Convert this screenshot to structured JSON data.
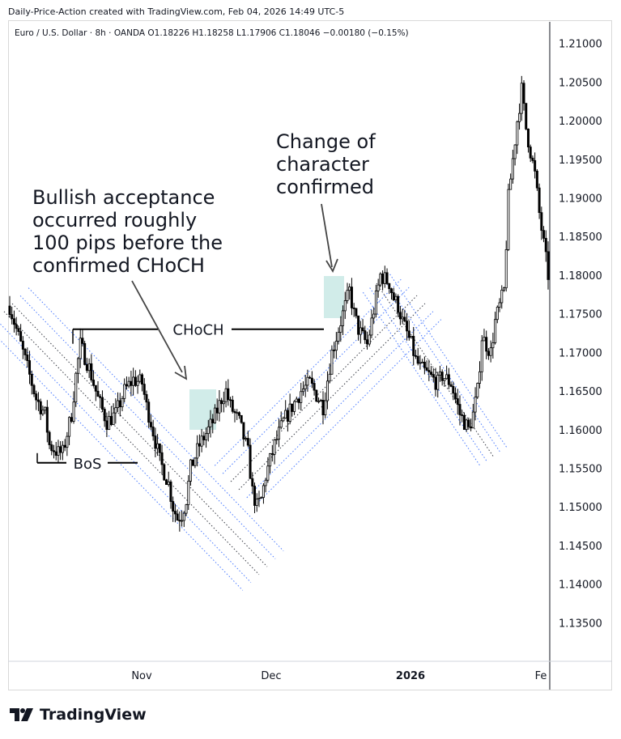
{
  "attribution": "Daily-Price-Action created with TradingView.com, Feb 04, 2026 14:49 UTC-5",
  "legend": "Euro / U.S. Dollar · 8h · OANDA  O1.18226  H1.18258  L1.17906  C1.18046  −0.00180 (−0.15%)",
  "brand": "TradingView",
  "colors": {
    "candle": "#000000",
    "zone": "#b2dfdb",
    "channel": "#2962ff",
    "midline": "#131722"
  },
  "icons": [
    "tradingview-logo-icon"
  ],
  "chart_data": {
    "type": "candlestick",
    "symbol": "Euro / U.S. Dollar",
    "interval": "8h",
    "exchange": "OANDA",
    "ohlc_last": {
      "open": 1.18226,
      "high": 1.18258,
      "low": 1.17906,
      "close": 1.18046,
      "change": -0.0018,
      "change_pct": -0.15
    },
    "y_ticks": [
      "1.21000",
      "1.20500",
      "1.20000",
      "1.19500",
      "1.19000",
      "1.18500",
      "1.18000",
      "1.17500",
      "1.17000",
      "1.16500",
      "1.16000",
      "1.15500",
      "1.15000",
      "1.14500",
      "1.14000",
      "1.13500"
    ],
    "ylim": [
      1.13,
      1.2128
    ],
    "x_ticks": [
      "Nov",
      "Dec",
      "2026",
      "Fe"
    ],
    "annotations": {
      "bos_label": "BoS",
      "choch_label": "CHoCH",
      "note_left": [
        "Bullish acceptance",
        "occurred roughly",
        "100 pips before the",
        "confirmed CHoCH"
      ],
      "note_right": [
        "Change of",
        "character",
        "confirmed"
      ],
      "bos_level": 1.1557,
      "choch_level": 1.173
    },
    "close_path": [
      [
        0,
        1.176
      ],
      [
        4,
        1.172
      ],
      [
        8,
        1.168
      ],
      [
        12,
        1.164
      ],
      [
        16,
        1.162
      ],
      [
        18,
        1.158
      ],
      [
        22,
        1.157
      ],
      [
        24,
        1.157
      ],
      [
        28,
        1.162
      ],
      [
        30,
        1.167
      ],
      [
        32,
        1.171
      ],
      [
        36,
        1.168
      ],
      [
        40,
        1.164
      ],
      [
        44,
        1.161
      ],
      [
        48,
        1.162
      ],
      [
        52,
        1.165
      ],
      [
        56,
        1.1665
      ],
      [
        60,
        1.166
      ],
      [
        62,
        1.163
      ],
      [
        64,
        1.161
      ],
      [
        68,
        1.156
      ],
      [
        72,
        1.153
      ],
      [
        74,
        1.15
      ],
      [
        76,
        1.1485
      ],
      [
        78,
        1.149
      ],
      [
        80,
        1.151
      ],
      [
        82,
        1.155
      ],
      [
        86,
        1.158
      ],
      [
        90,
        1.16
      ],
      [
        92,
        1.161
      ],
      [
        96,
        1.164
      ],
      [
        98,
        1.165
      ],
      [
        100,
        1.163
      ],
      [
        104,
        1.161
      ],
      [
        108,
        1.157
      ],
      [
        110,
        1.152
      ],
      [
        112,
        1.15
      ],
      [
        114,
        1.151
      ],
      [
        116,
        1.154
      ],
      [
        120,
        1.158
      ],
      [
        124,
        1.161
      ],
      [
        128,
        1.163
      ],
      [
        132,
        1.165
      ],
      [
        136,
        1.166
      ],
      [
        140,
        1.164
      ],
      [
        142,
        1.163
      ],
      [
        146,
        1.17
      ],
      [
        150,
        1.174
      ],
      [
        152,
        1.176
      ],
      [
        154,
        1.178
      ],
      [
        156,
        1.175
      ],
      [
        158,
        1.173
      ],
      [
        160,
        1.172
      ],
      [
        162,
        1.171
      ],
      [
        164,
        1.174
      ],
      [
        166,
        1.177
      ],
      [
        168,
        1.18
      ],
      [
        172,
        1.179
      ],
      [
        174,
        1.177
      ],
      [
        176,
        1.176
      ],
      [
        178,
        1.174
      ],
      [
        182,
        1.171
      ],
      [
        184,
        1.169
      ],
      [
        186,
        1.168
      ],
      [
        190,
        1.167
      ],
      [
        194,
        1.166
      ],
      [
        196,
        1.167
      ],
      [
        200,
        1.166
      ],
      [
        202,
        1.164
      ],
      [
        204,
        1.162
      ],
      [
        206,
        1.161
      ],
      [
        208,
        1.16
      ],
      [
        210,
        1.162
      ],
      [
        212,
        1.165
      ],
      [
        214,
        1.172
      ],
      [
        216,
        1.171
      ],
      [
        218,
        1.17
      ],
      [
        220,
        1.174
      ],
      [
        224,
        1.178
      ],
      [
        226,
        1.19
      ],
      [
        230,
        1.2
      ],
      [
        232,
        1.204
      ],
      [
        234,
        1.199
      ],
      [
        236,
        1.196
      ],
      [
        238,
        1.193
      ],
      [
        240,
        1.188
      ],
      [
        242,
        1.184
      ],
      [
        244,
        1.18
      ]
    ]
  }
}
